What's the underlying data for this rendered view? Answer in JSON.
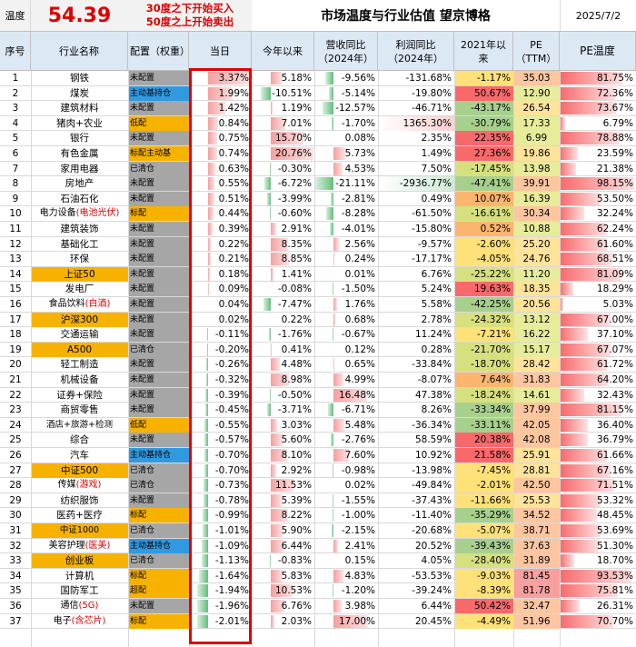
{
  "header": {
    "temp_label": "温度",
    "temp_value": "54.39",
    "rule_line1": "30度之下开始买入",
    "rule_line2": "50度之上开始卖出",
    "title": "市场温度与行业估值 望京博格",
    "date": "2025/7/2"
  },
  "columns": [
    "序号",
    "行业名称",
    "配置（权重）",
    "当日",
    "今年以来",
    "营收同比（2024年）",
    "利润同比（2024年）",
    "2021年以来",
    "PE（TTM）",
    "PE温度"
  ],
  "colors": {
    "pos": "#f4a0a0",
    "neg": "#63be7b",
    "orange": "#f7b200",
    "gray": "#a6a6a6",
    "blue": "#2f9ae0",
    "red_text": "#e00000",
    "header_bg": "#dde8f5"
  },
  "chart_data": {
    "type": "table",
    "rows": [
      {
        "idx": "1",
        "name": "钢铁",
        "alloc": "未配置",
        "day": "3.37%",
        "ytd": "5.18%",
        "rev": "-9.56%",
        "profit": "-131.68%",
        "since2021": "-1.17%",
        "pe": "35.03",
        "petemp": "81.75%",
        "name_bg": "none",
        "alloc_bg": "gray"
      },
      {
        "idx": "2",
        "name": "煤炭",
        "alloc": "主动基持仓",
        "day": "1.99%",
        "ytd": "-10.51%",
        "rev": "-5.14%",
        "profit": "-19.80%",
        "since2021": "50.67%",
        "pe": "12.90",
        "petemp": "72.36%",
        "name_bg": "none",
        "alloc_bg": "blue"
      },
      {
        "idx": "3",
        "name": "建筑材料",
        "alloc": "未配置",
        "day": "1.42%",
        "ytd": "1.19%",
        "rev": "-12.57%",
        "profit": "-46.71%",
        "since2021": "-43.17%",
        "pe": "26.54",
        "petemp": "73.67%",
        "name_bg": "none",
        "alloc_bg": "gray"
      },
      {
        "idx": "4",
        "name": "猪肉+农业",
        "alloc": "低配",
        "day": "0.84%",
        "ytd": "7.01%",
        "rev": "-1.70%",
        "profit": "1365.30%",
        "since2021": "-30.79%",
        "pe": "17.33",
        "petemp": "6.79%",
        "name_bg": "none",
        "alloc_bg": "orange"
      },
      {
        "idx": "5",
        "name": "银行",
        "alloc": "未配置",
        "day": "0.75%",
        "ytd": "15.70%",
        "rev": "0.08%",
        "profit": "2.35%",
        "since2021": "22.35%",
        "pe": "6.99",
        "petemp": "78.88%",
        "name_bg": "none",
        "alloc_bg": "gray"
      },
      {
        "idx": "6",
        "name": "有色金属",
        "alloc": "标配主动基",
        "day": "0.74%",
        "ytd": "20.76%",
        "rev": "5.73%",
        "profit": "1.49%",
        "since2021": "27.36%",
        "pe": "19.86",
        "petemp": "23.59%",
        "name_bg": "none",
        "alloc_bg": "orange"
      },
      {
        "idx": "7",
        "name": "家用电器",
        "alloc": "已清仓",
        "day": "0.63%",
        "ytd": "-0.30%",
        "rev": "4.53%",
        "profit": "7.50%",
        "since2021": "-17.45%",
        "pe": "13.98",
        "petemp": "21.38%",
        "name_bg": "none",
        "alloc_bg": "gray"
      },
      {
        "idx": "8",
        "name": "房地产",
        "alloc": "未配置",
        "day": "0.55%",
        "ytd": "-6.72%",
        "rev": "-21.11%",
        "profit": "-2936.77%",
        "since2021": "-47.41%",
        "pe": "39.91",
        "petemp": "98.15%",
        "name_bg": "none",
        "alloc_bg": "gray"
      },
      {
        "idx": "9",
        "name": "石油石化",
        "alloc": "未配置",
        "day": "0.51%",
        "ytd": "-3.99%",
        "rev": "-2.81%",
        "profit": "0.49%",
        "since2021": "10.07%",
        "pe": "16.39",
        "petemp": "53.50%",
        "name_bg": "none",
        "alloc_bg": "gray"
      },
      {
        "idx": "10",
        "name": "电力设备",
        "name_extra": "(电池光伏)",
        "alloc": "标配",
        "day": "0.44%",
        "ytd": "-0.60%",
        "rev": "-8.28%",
        "profit": "-61.50%",
        "since2021": "-16.61%",
        "pe": "30.34",
        "petemp": "32.24%",
        "name_bg": "none",
        "alloc_bg": "orange"
      },
      {
        "idx": "11",
        "name": "建筑装饰",
        "alloc": "未配置",
        "day": "0.39%",
        "ytd": "2.91%",
        "rev": "-4.01%",
        "profit": "-15.80%",
        "since2021": "0.52%",
        "pe": "10.88",
        "petemp": "62.24%",
        "name_bg": "none",
        "alloc_bg": "gray"
      },
      {
        "idx": "12",
        "name": "基础化工",
        "alloc": "未配置",
        "day": "0.22%",
        "ytd": "8.35%",
        "rev": "2.56%",
        "profit": "-9.57%",
        "since2021": "-2.60%",
        "pe": "25.20",
        "petemp": "61.60%",
        "name_bg": "none",
        "alloc_bg": "gray"
      },
      {
        "idx": "13",
        "name": "环保",
        "alloc": "未配置",
        "day": "0.21%",
        "ytd": "8.85%",
        "rev": "0.24%",
        "profit": "-17.17%",
        "since2021": "-4.05%",
        "pe": "24.76",
        "petemp": "68.51%",
        "name_bg": "none",
        "alloc_bg": "gray"
      },
      {
        "idx": "14",
        "name": "上证50",
        "alloc": "未配置",
        "day": "0.18%",
        "ytd": "1.41%",
        "rev": "0.01%",
        "profit": "6.76%",
        "since2021": "-25.22%",
        "pe": "11.20",
        "petemp": "81.09%",
        "name_bg": "orange",
        "alloc_bg": "gray"
      },
      {
        "idx": "15",
        "name": "发电厂",
        "alloc": "未配置",
        "day": "0.09%",
        "ytd": "-0.08%",
        "rev": "-1.50%",
        "profit": "5.24%",
        "since2021": "19.63%",
        "pe": "18.35",
        "petemp": "18.29%",
        "name_bg": "none",
        "alloc_bg": "gray"
      },
      {
        "idx": "16",
        "name": "食品饮料",
        "name_extra": "(白酒)",
        "alloc": "未配置",
        "day": "0.04%",
        "ytd": "-7.47%",
        "rev": "1.76%",
        "profit": "5.58%",
        "since2021": "-42.25%",
        "pe": "20.56",
        "petemp": "5.03%",
        "name_bg": "none",
        "alloc_bg": "gray"
      },
      {
        "idx": "17",
        "name": "沪深300",
        "alloc": "未配置",
        "day": "0.02%",
        "ytd": "0.22%",
        "rev": "0.68%",
        "profit": "2.78%",
        "since2021": "-24.32%",
        "pe": "13.12",
        "petemp": "67.00%",
        "name_bg": "orange",
        "alloc_bg": "gray"
      },
      {
        "idx": "18",
        "name": "交通运输",
        "alloc": "未配置",
        "day": "-0.11%",
        "ytd": "-1.76%",
        "rev": "-0.67%",
        "profit": "11.24%",
        "since2021": "-7.21%",
        "pe": "16.22",
        "petemp": "37.10%",
        "name_bg": "none",
        "alloc_bg": "gray"
      },
      {
        "idx": "19",
        "name": "A500",
        "alloc": "已清仓",
        "day": "-0.20%",
        "ytd": "0.41%",
        "rev": "0.12%",
        "profit": "0.28%",
        "since2021": "-21.70%",
        "pe": "15.17",
        "petemp": "67.07%",
        "name_bg": "orange",
        "alloc_bg": "gray"
      },
      {
        "idx": "20",
        "name": "轻工制造",
        "alloc": "未配置",
        "day": "-0.26%",
        "ytd": "4.48%",
        "rev": "0.65%",
        "profit": "-33.84%",
        "since2021": "-18.70%",
        "pe": "28.42",
        "petemp": "61.72%",
        "name_bg": "none",
        "alloc_bg": "gray"
      },
      {
        "idx": "21",
        "name": "机械设备",
        "alloc": "未配置",
        "day": "-0.32%",
        "ytd": "8.98%",
        "rev": "4.99%",
        "profit": "-8.07%",
        "since2021": "7.64%",
        "pe": "31.83",
        "petemp": "64.20%",
        "name_bg": "none",
        "alloc_bg": "gray"
      },
      {
        "idx": "22",
        "name": "证券+保险",
        "alloc": "未配置",
        "day": "-0.39%",
        "ytd": "-0.50%",
        "rev": "16.48%",
        "profit": "47.38%",
        "since2021": "-18.24%",
        "pe": "14.61",
        "petemp": "32.43%",
        "name_bg": "none",
        "alloc_bg": "gray"
      },
      {
        "idx": "23",
        "name": "商贸零售",
        "alloc": "未配置",
        "day": "-0.45%",
        "ytd": "-3.71%",
        "rev": "-6.71%",
        "profit": "8.26%",
        "since2021": "-33.34%",
        "pe": "37.99",
        "petemp": "81.15%",
        "name_bg": "none",
        "alloc_bg": "gray"
      },
      {
        "idx": "24",
        "name": "酒店+旅游+检测",
        "alloc": "低配",
        "day": "-0.55%",
        "ytd": "3.03%",
        "rev": "5.48%",
        "profit": "-36.34%",
        "since2021": "-33.11%",
        "pe": "42.05",
        "petemp": "36.40%",
        "name_bg": "none",
        "alloc_bg": "orange"
      },
      {
        "idx": "25",
        "name": "综合",
        "alloc": "未配置",
        "day": "-0.57%",
        "ytd": "5.60%",
        "rev": "-2.76%",
        "profit": "58.59%",
        "since2021": "20.38%",
        "pe": "42.08",
        "petemp": "36.79%",
        "name_bg": "none",
        "alloc_bg": "gray"
      },
      {
        "idx": "26",
        "name": "汽车",
        "alloc": "主动基持仓",
        "day": "-0.70%",
        "ytd": "8.10%",
        "rev": "7.60%",
        "profit": "10.92%",
        "since2021": "21.58%",
        "pe": "25.91",
        "petemp": "61.66%",
        "name_bg": "none",
        "alloc_bg": "blue"
      },
      {
        "idx": "27",
        "name": "中证500",
        "alloc": "已清仓",
        "day": "-0.70%",
        "ytd": "2.92%",
        "rev": "-0.98%",
        "profit": "-13.98%",
        "since2021": "-7.45%",
        "pe": "28.81",
        "petemp": "67.16%",
        "name_bg": "orange",
        "alloc_bg": "gray"
      },
      {
        "idx": "28",
        "name": "传媒",
        "name_extra": "(游戏)",
        "alloc": "已清仓",
        "day": "-0.73%",
        "ytd": "11.53%",
        "rev": "0.02%",
        "profit": "-49.84%",
        "since2021": "-2.01%",
        "pe": "42.50",
        "petemp": "71.51%",
        "name_bg": "none",
        "alloc_bg": "gray"
      },
      {
        "idx": "29",
        "name": "纺织服饰",
        "alloc": "未配置",
        "day": "-0.78%",
        "ytd": "5.39%",
        "rev": "-1.55%",
        "profit": "-37.43%",
        "since2021": "-11.66%",
        "pe": "25.53",
        "petemp": "53.32%",
        "name_bg": "none",
        "alloc_bg": "gray"
      },
      {
        "idx": "30",
        "name": "医药+医疗",
        "alloc": "标配",
        "day": "-0.99%",
        "ytd": "8.22%",
        "rev": "-1.00%",
        "profit": "-11.40%",
        "since2021": "-35.29%",
        "pe": "34.52",
        "petemp": "48.45%",
        "name_bg": "none",
        "alloc_bg": "orange"
      },
      {
        "idx": "31",
        "name": "中证1000",
        "alloc": "已清仓",
        "day": "-1.01%",
        "ytd": "5.90%",
        "rev": "-2.15%",
        "profit": "-20.68%",
        "since2021": "-5.07%",
        "pe": "38.71",
        "petemp": "53.69%",
        "name_bg": "orange",
        "alloc_bg": "gray"
      },
      {
        "idx": "32",
        "name": "美容护理",
        "name_extra": "(医美)",
        "alloc": "主动基持仓",
        "day": "-1.09%",
        "ytd": "6.44%",
        "rev": "2.41%",
        "profit": "20.52%",
        "since2021": "-39.43%",
        "pe": "37.63",
        "petemp": "51.30%",
        "name_bg": "none",
        "alloc_bg": "blue"
      },
      {
        "idx": "33",
        "name": "创业板",
        "alloc": "已清仓",
        "day": "-1.13%",
        "ytd": "-0.83%",
        "rev": "0.15%",
        "profit": "4.05%",
        "since2021": "-28.40%",
        "pe": "31.89",
        "petemp": "18.70%",
        "name_bg": "orange",
        "alloc_bg": "gray"
      },
      {
        "idx": "34",
        "name": "计算机",
        "alloc": "标配",
        "day": "-1.64%",
        "ytd": "5.83%",
        "rev": "4.83%",
        "profit": "-53.53%",
        "since2021": "-9.03%",
        "pe": "81.45",
        "petemp": "93.53%",
        "name_bg": "none",
        "alloc_bg": "orange"
      },
      {
        "idx": "35",
        "name": "国防军工",
        "alloc": "超配",
        "day": "-1.94%",
        "ytd": "10.53%",
        "rev": "-1.20%",
        "profit": "-39.24%",
        "since2021": "-8.39%",
        "pe": "81.78",
        "petemp": "75.81%",
        "name_bg": "none",
        "alloc_bg": "orange"
      },
      {
        "idx": "36",
        "name": "通信",
        "name_extra": "(5G)",
        "alloc": "未配置",
        "day": "-1.96%",
        "ytd": "6.76%",
        "rev": "3.98%",
        "profit": "6.44%",
        "since2021": "50.42%",
        "pe": "32.47",
        "petemp": "26.31%",
        "name_bg": "none",
        "alloc_bg": "gray"
      },
      {
        "idx": "37",
        "name": "电子",
        "name_extra": "(含芯片)",
        "alloc": "标配",
        "day": "-2.01%",
        "ytd": "2.03%",
        "rev": "17.00%",
        "profit": "20.45%",
        "since2021": "-4.49%",
        "pe": "51.96",
        "petemp": "70.70%",
        "name_bg": "none",
        "alloc_bg": "orange"
      }
    ]
  }
}
